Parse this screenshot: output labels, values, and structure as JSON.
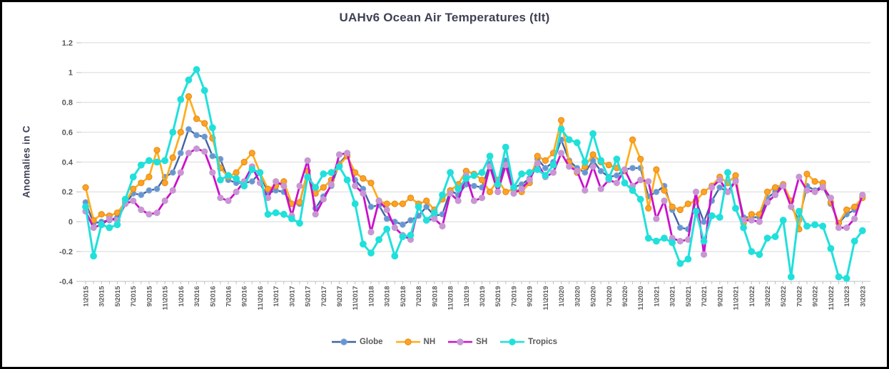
{
  "chart_data": {
    "type": "line",
    "title": "UAHv6 Ocean Air Temperatures (tlt)",
    "xlabel": "",
    "ylabel": "Anomalies in C",
    "ylim": [
      -0.4,
      1.2
    ],
    "y_ticks": [
      1.2,
      1,
      0.8,
      0.6,
      0.4,
      0.2,
      0,
      -0.2,
      -0.4
    ],
    "grid": "horizontal",
    "legend_position": "bottom",
    "n_months": 99,
    "x_start": "1\\2015",
    "x_end": "3\\2023",
    "x_label_every_n_months": 2,
    "x_labels": [
      "1\\2015",
      "3\\2015",
      "5\\2015",
      "7\\2015",
      "9\\2015",
      "11\\2015",
      "1\\2016",
      "3\\2016",
      "5\\2016",
      "7\\2016",
      "9\\2016",
      "11\\2016",
      "1\\2017",
      "3\\2017",
      "5\\2017",
      "7\\2017",
      "9\\2017",
      "11\\2017",
      "1\\2018",
      "3\\2018",
      "5\\2018",
      "7\\2018",
      "9\\2018",
      "11\\2018",
      "1\\2019",
      "3\\2019",
      "5\\2019",
      "7\\2019",
      "9\\2019",
      "11\\2019",
      "1\\2020",
      "3\\2020",
      "5\\2020",
      "7\\2020",
      "9\\2020",
      "11\\2020",
      "1\\2021",
      "3\\2021",
      "5\\2021",
      "7\\2021",
      "9\\2021",
      "11\\2021",
      "1\\2022",
      "3\\2022",
      "5\\2022",
      "7\\2022",
      "9\\2022",
      "11\\2022",
      "1\\2023",
      "3\\2023"
    ],
    "series": [
      {
        "name": "Globe",
        "line_color": "#3F63A5",
        "marker_color": "#6396D6",
        "marker_edge_color": "#87A7CF",
        "values": [
          0.13,
          -0.01,
          0.0,
          0.01,
          0.03,
          0.12,
          0.19,
          0.18,
          0.21,
          0.22,
          0.3,
          0.33,
          0.46,
          0.62,
          0.58,
          0.57,
          0.44,
          0.42,
          0.28,
          0.26,
          0.26,
          0.27,
          0.33,
          0.19,
          0.21,
          0.2,
          0.12,
          0.12,
          0.34,
          0.09,
          0.17,
          0.24,
          0.39,
          0.45,
          0.28,
          0.22,
          0.1,
          0.11,
          0.02,
          0.0,
          -0.02,
          0.01,
          0.04,
          0.1,
          0.04,
          0.05,
          0.21,
          0.18,
          0.25,
          0.24,
          0.23,
          0.39,
          0.24,
          0.41,
          0.23,
          0.25,
          0.29,
          0.42,
          0.36,
          0.4,
          0.55,
          0.41,
          0.36,
          0.33,
          0.41,
          0.34,
          0.3,
          0.31,
          0.35,
          0.36,
          0.36,
          0.17,
          0.2,
          0.24,
          0.08,
          -0.04,
          -0.05,
          0.14,
          0.0,
          0.14,
          0.23,
          0.2,
          0.28,
          0.03,
          0.03,
          0.03,
          0.16,
          0.2,
          0.25,
          0.1,
          0.01,
          0.24,
          0.21,
          0.24,
          0.12,
          -0.01,
          0.05,
          0.08,
          0.17
        ]
      },
      {
        "name": "NH",
        "line_color": "#FFAD1C",
        "marker_color": "#FFA321",
        "marker_edge_color": "#E1871C",
        "values": [
          0.23,
          0.01,
          0.05,
          0.04,
          0.06,
          0.13,
          0.22,
          0.26,
          0.3,
          0.48,
          0.26,
          0.43,
          0.6,
          0.84,
          0.69,
          0.66,
          0.56,
          0.36,
          0.3,
          0.33,
          0.4,
          0.46,
          0.33,
          0.22,
          0.24,
          0.27,
          0.12,
          0.13,
          0.34,
          0.19,
          0.23,
          0.28,
          0.38,
          0.44,
          0.33,
          0.29,
          0.26,
          0.14,
          0.12,
          0.12,
          0.12,
          0.16,
          0.12,
          0.14,
          0.08,
          0.15,
          0.21,
          0.25,
          0.34,
          0.32,
          0.28,
          0.2,
          0.28,
          0.2,
          0.22,
          0.2,
          0.26,
          0.44,
          0.41,
          0.46,
          0.68,
          0.4,
          0.33,
          0.37,
          0.45,
          0.4,
          0.38,
          0.36,
          0.34,
          0.55,
          0.42,
          0.09,
          0.35,
          0.21,
          0.1,
          0.08,
          0.12,
          0.14,
          0.2,
          0.24,
          0.3,
          0.26,
          0.31,
          -0.01,
          0.05,
          0.05,
          0.2,
          0.23,
          0.25,
          0.14,
          -0.05,
          0.32,
          0.27,
          0.26,
          0.13,
          -0.01,
          0.08,
          0.1,
          0.16
        ]
      },
      {
        "name": "SH",
        "line_color": "#CC10CC",
        "marker_color": "#CE93D6",
        "marker_edge_color": "#B9A0C9",
        "values": [
          0.07,
          -0.04,
          -0.02,
          0.02,
          0.01,
          0.12,
          0.14,
          0.08,
          0.05,
          0.06,
          0.14,
          0.21,
          0.33,
          0.46,
          0.49,
          0.47,
          0.33,
          0.16,
          0.14,
          0.2,
          0.27,
          0.37,
          0.26,
          0.16,
          0.27,
          0.24,
          0.04,
          0.24,
          0.41,
          0.05,
          0.15,
          0.25,
          0.45,
          0.46,
          0.24,
          0.19,
          -0.07,
          0.14,
          0.08,
          -0.04,
          -0.09,
          -0.12,
          0.1,
          0.01,
          0.02,
          -0.03,
          0.19,
          0.14,
          0.31,
          0.14,
          0.16,
          0.37,
          0.2,
          0.38,
          0.19,
          0.22,
          0.28,
          0.39,
          0.3,
          0.33,
          0.46,
          0.37,
          0.34,
          0.21,
          0.37,
          0.22,
          0.28,
          0.26,
          0.35,
          0.24,
          0.28,
          0.27,
          0.02,
          0.14,
          -0.11,
          -0.13,
          -0.12,
          0.2,
          -0.22,
          0.23,
          0.28,
          0.2,
          0.27,
          0.01,
          0.01,
          0.0,
          0.13,
          0.18,
          0.24,
          0.1,
          0.3,
          0.21,
          0.2,
          0.23,
          0.16,
          -0.04,
          -0.04,
          0.02,
          0.18
        ]
      },
      {
        "name": "Tropics",
        "line_color": "#21E0DB",
        "marker_color": "#21E0DB",
        "marker_edge_color": "#21E0DB",
        "values": [
          0.1,
          -0.23,
          -0.02,
          -0.04,
          -0.02,
          0.15,
          0.3,
          0.38,
          0.41,
          0.4,
          0.41,
          0.6,
          0.82,
          0.95,
          1.02,
          0.88,
          0.63,
          0.28,
          0.31,
          0.29,
          0.24,
          0.35,
          0.33,
          0.05,
          0.06,
          0.05,
          0.02,
          -0.01,
          0.3,
          0.23,
          0.32,
          0.33,
          0.37,
          0.28,
          0.12,
          -0.15,
          -0.21,
          -0.12,
          -0.05,
          -0.23,
          -0.1,
          -0.09,
          0.1,
          0.01,
          0.06,
          0.18,
          0.33,
          0.22,
          0.29,
          0.31,
          0.33,
          0.44,
          0.25,
          0.5,
          0.23,
          0.32,
          0.33,
          0.35,
          0.31,
          0.38,
          0.62,
          0.55,
          0.53,
          0.4,
          0.59,
          0.41,
          0.29,
          0.42,
          0.26,
          0.21,
          0.15,
          -0.11,
          -0.13,
          -0.11,
          -0.14,
          -0.28,
          -0.25,
          0.07,
          -0.13,
          0.04,
          0.03,
          0.33,
          0.09,
          -0.04,
          -0.2,
          -0.22,
          -0.11,
          -0.1,
          0.01,
          -0.37,
          0.07,
          -0.03,
          -0.02,
          -0.03,
          -0.18,
          -0.37,
          -0.38,
          -0.13,
          -0.06
        ]
      }
    ]
  },
  "colors": {
    "grid": "#D9D9D9",
    "axis": "#BFBFBF",
    "tick_text": "#595959",
    "title_text": "#3E4254",
    "background": "#FFFFFF",
    "frame_border": "#000000"
  }
}
